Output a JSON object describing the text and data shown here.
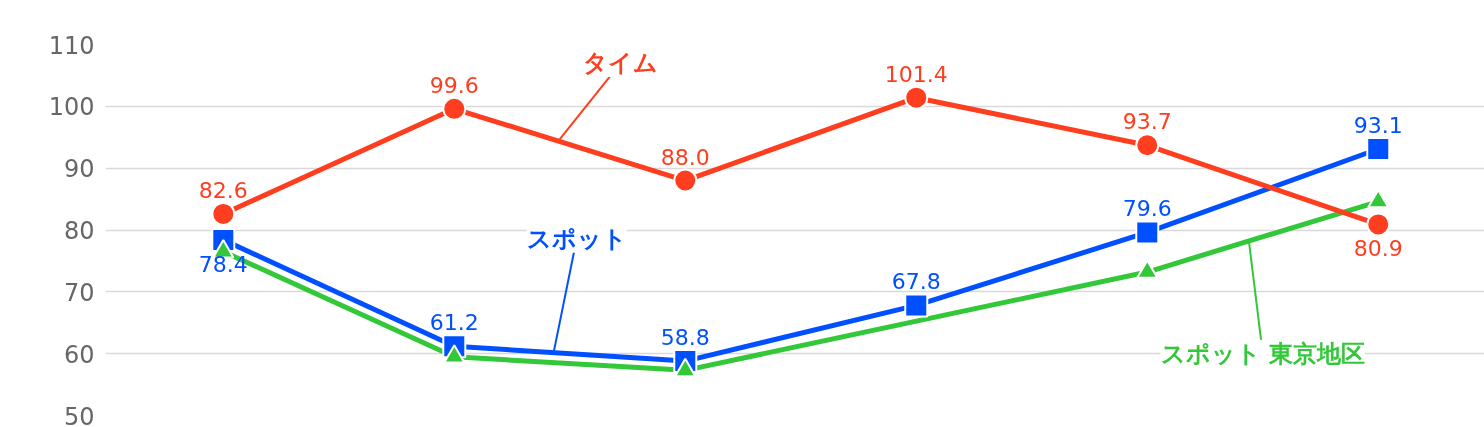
{
  "chart_data": {
    "type": "line",
    "categories": [
      null,
      null,
      null,
      null,
      null,
      null
    ],
    "ylim": [
      50,
      110
    ],
    "yticks": [
      50,
      60,
      70,
      80,
      90,
      100,
      110
    ],
    "grid": "y",
    "tick_labels": "y",
    "legend": false,
    "line_style": "solid",
    "series": [
      {
        "name": "スポット 東京地区",
        "color": "#33c73a",
        "marker": "triangle",
        "values": [
          76.5,
          59.5,
          57.3,
          null,
          73.2,
          84.6
        ]
      },
      {
        "name": "スポット",
        "color": "#0050ff",
        "marker": "square",
        "values": [
          78.4,
          61.2,
          58.8,
          67.8,
          79.6,
          93.1
        ],
        "value_labels": [
          "78.4",
          "61.2",
          "58.8",
          "67.8",
          "79.6",
          "93.1"
        ]
      },
      {
        "name": "タイム",
        "color": "#ff3d1f",
        "marker": "circle",
        "values": [
          82.6,
          99.6,
          88.0,
          101.4,
          93.7,
          80.9
        ],
        "value_labels": [
          "82.6",
          "99.6",
          "88.0",
          "101.4",
          "93.7",
          "80.9"
        ]
      }
    ]
  }
}
